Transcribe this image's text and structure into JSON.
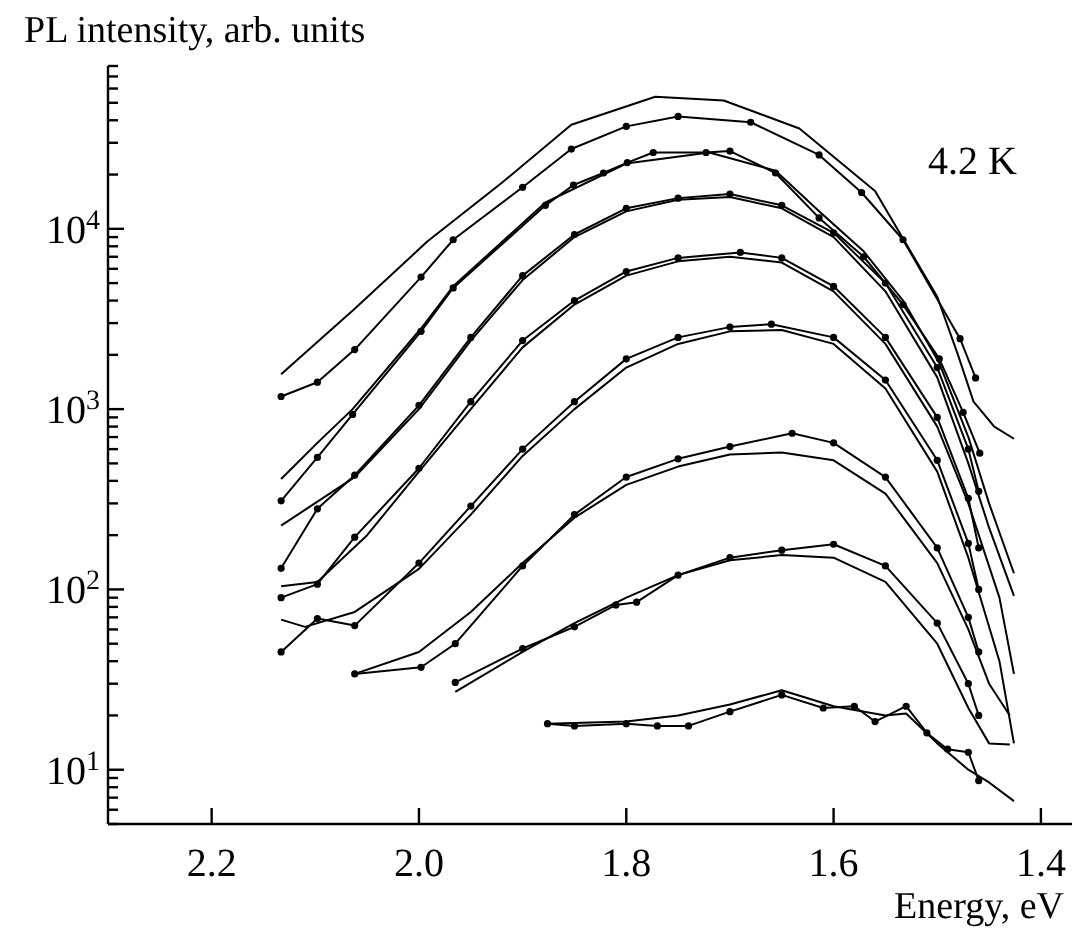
{
  "chart_data": {
    "type": "line",
    "ylabel": "PL intensity, arb. units",
    "xlabel": "Energy, eV",
    "annotations": [
      "4.2 K"
    ],
    "log": "y",
    "xlim": [
      2.3,
      1.37
    ],
    "xticks": [
      2.2,
      {
        "value": 2,
        "label": "2.0"
      },
      1.8,
      1.6,
      1.4
    ],
    "ylim": [
      5,
      80000
    ],
    "yticks": [
      {
        "value": 5,
        "label": null
      },
      {
        "value": 6,
        "label": null
      },
      {
        "value": 7,
        "label": null
      },
      {
        "value": 8,
        "label": null
      },
      {
        "value": 9,
        "label": null
      },
      {
        "value": 10,
        "label": "10$^{1}$"
      },
      {
        "value": 20,
        "label": null
      },
      {
        "value": 30,
        "label": null
      },
      {
        "value": 40,
        "label": null
      },
      {
        "value": 50,
        "label": null
      },
      {
        "value": 60,
        "label": null
      },
      {
        "value": 70,
        "label": null
      },
      {
        "value": 80,
        "label": null
      },
      {
        "value": 90,
        "label": null
      },
      {
        "value": 100,
        "label": "10$^{2}$"
      },
      {
        "value": 200,
        "label": null
      },
      {
        "value": 300,
        "label": null
      },
      {
        "value": 400,
        "label": null
      },
      {
        "value": 500,
        "label": null
      },
      {
        "value": 600,
        "label": null
      },
      {
        "value": 700,
        "label": null
      },
      {
        "value": 800,
        "label": null
      },
      {
        "value": 900,
        "label": null
      },
      {
        "value": 1000,
        "label": "10$^{3}$"
      },
      {
        "value": 2000,
        "label": null
      },
      {
        "value": 3000,
        "label": null
      },
      {
        "value": 4000,
        "label": null
      },
      {
        "value": 5000,
        "label": null
      },
      {
        "value": 6000,
        "label": null
      },
      {
        "value": 7000,
        "label": null
      },
      {
        "value": 8000,
        "label": null
      },
      {
        "value": 9000,
        "label": null
      },
      {
        "value": 10000,
        "label": "10$^{4}$"
      },
      {
        "value": 20000,
        "label": null
      },
      {
        "value": 30000,
        "label": null
      },
      {
        "value": 40000,
        "label": null
      },
      {
        "value": 50000,
        "label": null
      },
      {
        "value": 60000,
        "label": null
      },
      {
        "value": 70000,
        "label": null
      },
      {
        "value": 80000,
        "label": null
      }
    ],
    "series": [
      {
        "color": "#000000",
        "marker": "none",
        "x": [
          2.133,
          2.062,
          1.992,
          1.92,
          1.853,
          1.772,
          1.706,
          1.633,
          1.56,
          1.5,
          1.48,
          1.465,
          1.445,
          1.426
        ],
        "values": [
          1560,
          3600,
          8500,
          18000,
          37800,
          54000,
          51500,
          36000,
          16200,
          4200,
          2000,
          1100,
          800,
          685
        ]
      },
      {
        "color": "#000000",
        "marker": "circle",
        "x": [
          2.133,
          2.098,
          2.062,
          1.998,
          1.967,
          1.9,
          1.853,
          1.8,
          1.75,
          1.68,
          1.614,
          1.573,
          1.533,
          1.478,
          1.463
        ],
        "values": [
          1175,
          1410,
          2140,
          5400,
          8700,
          17000,
          27700,
          37000,
          42000,
          39000,
          25700,
          15900,
          8700,
          2460,
          1490
        ]
      },
      {
        "color": "#000000",
        "marker": "none",
        "x": [
          2.133,
          2.098,
          2.064,
          1.998,
          1.967,
          1.878,
          1.8,
          1.72,
          1.656,
          1.614,
          1.571,
          1.533,
          1.498,
          1.47,
          1.45,
          1.426
        ],
        "values": [
          410,
          650,
          1000,
          2800,
          4800,
          14000,
          23000,
          26500,
          21000,
          12500,
          7500,
          4000,
          1800,
          700,
          300,
          123
        ]
      },
      {
        "color": "#000000",
        "marker": "circle",
        "x": [
          2.133,
          2.098,
          2.064,
          1.998,
          1.967,
          1.878,
          1.851,
          1.822,
          1.799,
          1.774,
          1.723,
          1.7,
          1.656,
          1.614,
          1.571,
          1.533,
          1.498,
          1.475,
          1.459
        ],
        "values": [
          310,
          540,
          935,
          2700,
          4700,
          13500,
          17500,
          20400,
          23300,
          26500,
          26500,
          27000,
          20400,
          11500,
          7000,
          3800,
          1900,
          960,
          570
        ]
      },
      {
        "color": "#000000",
        "marker": "none",
        "x": [
          2.133,
          2.062,
          2,
          1.95,
          1.9,
          1.85,
          1.8,
          1.75,
          1.7,
          1.65,
          1.6,
          1.55,
          1.5,
          1.47,
          1.45,
          1.426
        ],
        "values": [
          226,
          420,
          1000,
          2400,
          5200,
          9000,
          12500,
          14500,
          15000,
          13000,
          9000,
          4500,
          1500,
          500,
          220,
          92
        ]
      },
      {
        "color": "#000000",
        "marker": "circle",
        "x": [
          2.133,
          2.098,
          2.062,
          2,
          1.95,
          1.9,
          1.85,
          1.8,
          1.75,
          1.7,
          1.65,
          1.6,
          1.55,
          1.5,
          1.47,
          1.46
        ],
        "values": [
          131,
          280,
          430,
          1050,
          2500,
          5500,
          9300,
          13000,
          14800,
          15600,
          13500,
          9500,
          5000,
          1700,
          600,
          350
        ]
      },
      {
        "color": "#000000",
        "marker": "none",
        "x": [
          2.133,
          2.098,
          2.05,
          2,
          1.95,
          1.9,
          1.85,
          1.8,
          1.75,
          1.7,
          1.65,
          1.6,
          1.55,
          1.5,
          1.47,
          1.44,
          1.426
        ],
        "values": [
          104,
          110,
          200,
          450,
          1000,
          2200,
          3800,
          5500,
          6600,
          7000,
          6500,
          4500,
          2300,
          800,
          300,
          90,
          34
        ]
      },
      {
        "color": "#000000",
        "marker": "circle",
        "x": [
          2.133,
          2.098,
          2.062,
          2,
          1.95,
          1.9,
          1.85,
          1.8,
          1.75,
          1.69,
          1.65,
          1.6,
          1.55,
          1.5,
          1.47,
          1.46
        ],
        "values": [
          90,
          107,
          195,
          470,
          1100,
          2400,
          4000,
          5800,
          6900,
          7400,
          6900,
          4800,
          2500,
          900,
          320,
          170
        ]
      },
      {
        "color": "#000000",
        "marker": "none",
        "x": [
          2.133,
          2.11,
          2.062,
          2,
          1.95,
          1.9,
          1.85,
          1.8,
          1.75,
          1.7,
          1.65,
          1.6,
          1.55,
          1.5,
          1.47,
          1.44,
          1.426
        ],
        "values": [
          68,
          62,
          75,
          130,
          260,
          550,
          1000,
          1700,
          2300,
          2700,
          2750,
          2300,
          1300,
          450,
          150,
          40,
          14
        ]
      },
      {
        "color": "#000000",
        "marker": "circle",
        "x": [
          2.133,
          2.098,
          2.062,
          2,
          1.95,
          1.9,
          1.85,
          1.8,
          1.75,
          1.7,
          1.66,
          1.6,
          1.55,
          1.5,
          1.47,
          1.46
        ],
        "values": [
          45,
          69,
          63,
          140,
          290,
          600,
          1100,
          1900,
          2500,
          2850,
          2960,
          2500,
          1450,
          520,
          180,
          100
        ]
      },
      {
        "color": "#000000",
        "marker": "none",
        "x": [
          2.062,
          2,
          1.95,
          1.9,
          1.85,
          1.8,
          1.75,
          1.7,
          1.65,
          1.6,
          1.55,
          1.5,
          1.47,
          1.45,
          1.43
        ],
        "values": [
          34,
          45,
          75,
          140,
          250,
          380,
          480,
          560,
          575,
          520,
          340,
          140,
          60,
          30,
          20
        ]
      },
      {
        "color": "#000000",
        "marker": "circle",
        "x": [
          2.062,
          1.998,
          1.965,
          1.9,
          1.85,
          1.8,
          1.75,
          1.7,
          1.64,
          1.6,
          1.55,
          1.5,
          1.47,
          1.46
        ],
        "values": [
          34,
          37,
          50,
          135,
          260,
          420,
          530,
          620,
          735,
          650,
          420,
          170,
          70,
          45
        ]
      },
      {
        "color": "#000000",
        "marker": "none",
        "x": [
          1.965,
          1.9,
          1.85,
          1.8,
          1.75,
          1.7,
          1.65,
          1.6,
          1.55,
          1.5,
          1.47,
          1.45,
          1.43
        ],
        "values": [
          27,
          45,
          65,
          90,
          120,
          145,
          155,
          150,
          110,
          50,
          22,
          14,
          13.8
        ]
      },
      {
        "color": "#000000",
        "marker": "circle",
        "x": [
          1.965,
          1.9,
          1.85,
          1.81,
          1.79,
          1.75,
          1.7,
          1.65,
          1.6,
          1.55,
          1.5,
          1.47,
          1.46
        ],
        "values": [
          30.5,
          47,
          62,
          82,
          85,
          120,
          150,
          165,
          178,
          135,
          65,
          30,
          20
        ]
      },
      {
        "color": "#000000",
        "marker": "none",
        "x": [
          1.876,
          1.8,
          1.75,
          1.7,
          1.65,
          1.6,
          1.55,
          1.53,
          1.5,
          1.47,
          1.45,
          1.426
        ],
        "values": [
          18,
          18.5,
          20,
          23,
          27.6,
          22.5,
          20,
          20.5,
          14,
          10,
          8.5,
          6.7
        ]
      },
      {
        "color": "#000000",
        "marker": "circle",
        "x": [
          1.876,
          1.85,
          1.8,
          1.77,
          1.74,
          1.7,
          1.65,
          1.61,
          1.58,
          1.56,
          1.53,
          1.51,
          1.49,
          1.47,
          1.46
        ],
        "values": [
          18,
          17.5,
          18,
          17.5,
          17.5,
          21,
          26,
          22,
          22.5,
          18.5,
          22.5,
          16,
          13,
          12.5,
          8.7
        ]
      }
    ]
  }
}
